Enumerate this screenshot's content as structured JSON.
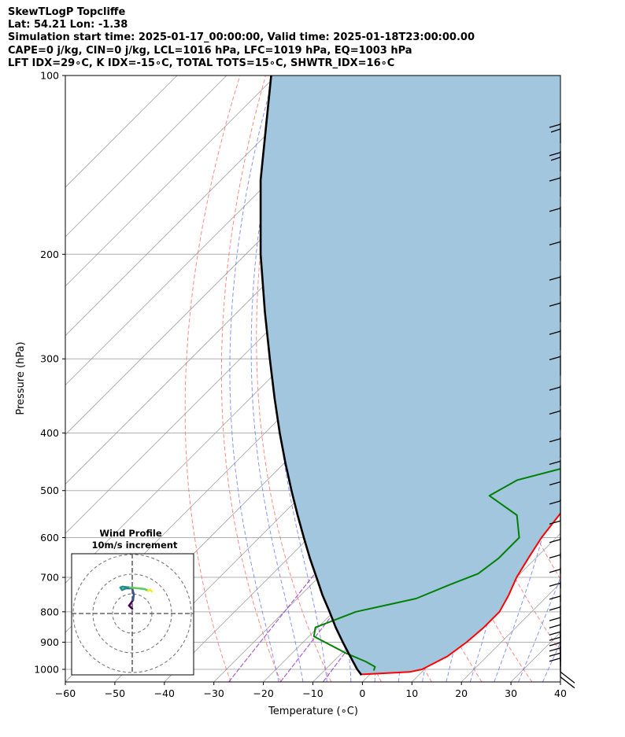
{
  "header": {
    "line1": "SkewTLogP Topcliffe",
    "line2": "Lat: 54.21   Lon: -1.38",
    "line3": "Simulation start time: 2025-01-17_00:00:00, Valid time: 2025-01-18T23:00:00.00",
    "line4": "CAPE=0 j/kg, CIN=0 j/kg, LCL=1016 hPa, LFC=1019 hPa, EQ=1003 hPa",
    "line5": "LFT IDX=29∘C, K IDX=-15∘C, TOTAL TOTS=15∘C, SHWTR_IDX=16∘C"
  },
  "chart_data": {
    "type": "line",
    "xlabel": "Temperature (∘C)",
    "ylabel": "Pressure (hPa)",
    "xlim": [
      -60,
      40
    ],
    "ylim": [
      1050,
      100
    ],
    "y_scale": "log",
    "x_ticks": [
      "−60",
      "−50",
      "−40",
      "−30",
      "−20",
      "−10",
      "0",
      "10",
      "20",
      "30",
      "40"
    ],
    "y_ticks": [
      "1000",
      "900",
      "800",
      "700",
      "600",
      "500",
      "400",
      "300",
      "200",
      "100"
    ],
    "skew": "temperature isotherms skewed 45°",
    "shading": "area between parcel profile and temperature shaded light blue",
    "colors": {
      "temperature": "#ff0000",
      "dewpoint": "#008000",
      "parcel": "#000000",
      "shade": "#a3c6df",
      "dry_adiabats": "#ff6060",
      "moist_adiabats": "#6070ff",
      "mixing_ratio": "#9933cc"
    },
    "series": [
      {
        "key": "temperature",
        "points": [
          [
            1020,
            -2.0
          ],
          [
            1010,
            7.5
          ],
          [
            1000,
            9.5
          ],
          [
            980,
            10.5
          ],
          [
            950,
            12.0
          ],
          [
            900,
            13.0
          ],
          [
            850,
            13.5
          ],
          [
            800,
            13.5
          ],
          [
            750,
            12.0
          ],
          [
            700,
            10.0
          ],
          [
            650,
            8.5
          ],
          [
            600,
            7.0
          ],
          [
            550,
            6.0
          ],
          [
            500,
            5.0
          ],
          [
            450,
            5.0
          ],
          [
            400,
            4.0
          ],
          [
            350,
            4.0
          ],
          [
            300,
            3.0
          ],
          [
            270,
            3.5
          ],
          [
            250,
            5.0
          ],
          [
            220,
            6.5
          ],
          [
            200,
            7.5
          ],
          [
            180,
            15.0
          ],
          [
            160,
            25.0
          ],
          [
            145,
            33.0
          ],
          [
            130,
            39.0
          ],
          [
            120,
            41.0
          ],
          [
            110,
            45.0
          ],
          [
            100,
            50.0
          ]
        ]
      },
      {
        "key": "dewpoint",
        "points": [
          [
            1005,
            0.0
          ],
          [
            990,
            -0.5
          ],
          [
            970,
            -3.5
          ],
          [
            940,
            -9.0
          ],
          [
            880,
            -19.0
          ],
          [
            850,
            -20.5
          ],
          [
            800,
            -15.5
          ],
          [
            760,
            -6.0
          ],
          [
            720,
            -2.0
          ],
          [
            690,
            1.5
          ],
          [
            650,
            2.5
          ],
          [
            600,
            2.5
          ],
          [
            550,
            -2.5
          ],
          [
            510,
            -12.0
          ],
          [
            480,
            -9.5
          ],
          [
            450,
            0.0
          ],
          [
            420,
            1.5
          ],
          [
            380,
            4.0
          ],
          [
            350,
            5.0
          ],
          [
            300,
            8.0
          ],
          [
            270,
            10.0
          ],
          [
            240,
            14.0
          ],
          [
            220,
            20.0
          ],
          [
            200,
            25.5
          ],
          [
            185,
            28.5
          ],
          [
            170,
            32.0
          ],
          [
            160,
            30.5
          ],
          [
            150,
            28.0
          ],
          [
            140,
            28.0
          ],
          [
            130,
            33.0
          ],
          [
            120,
            39.0
          ],
          [
            110,
            46.0
          ],
          [
            100,
            54.0
          ]
        ]
      },
      {
        "key": "parcel",
        "points": [
          [
            1022,
            -1.6
          ],
          [
            1000,
            -3.6
          ],
          [
            950,
            -7.7
          ],
          [
            900,
            -12.0
          ],
          [
            850,
            -16.4
          ],
          [
            800,
            -20.8
          ],
          [
            750,
            -25.6
          ],
          [
            700,
            -30.4
          ],
          [
            650,
            -35.6
          ],
          [
            600,
            -41.0
          ],
          [
            550,
            -46.8
          ],
          [
            500,
            -53.0
          ],
          [
            450,
            -59.7
          ],
          [
            400,
            -67.0
          ],
          [
            350,
            -75.0
          ],
          [
            300,
            -84.0
          ],
          [
            250,
            -94.5
          ],
          [
            200,
            -107.0
          ],
          [
            150,
            -122.0
          ],
          [
            100,
            -141.0
          ]
        ]
      }
    ],
    "wind_barbs_pressure_hpa": [
      1030,
      1010,
      990,
      970,
      950,
      930,
      905,
      880,
      845,
      810,
      770,
      730,
      690,
      650,
      605,
      560,
      520,
      480,
      440,
      395,
      360,
      320,
      290,
      260,
      235,
      205,
      180,
      160,
      145,
      130
    ],
    "inset": {
      "title": "Wind Profile",
      "subtitle": "10m/s increment",
      "rings": 3,
      "hodograph_uv": [
        [
          0.0,
          -1.4
        ],
        [
          -0.4,
          -1.0
        ],
        [
          0.1,
          -0.3
        ],
        [
          0.2,
          0.4
        ],
        [
          0.0,
          1.2
        ],
        [
          -0.8,
          1.2
        ],
        [
          -1.3,
          1.0
        ],
        [
          -1.5,
          1.3
        ],
        [
          -1.2,
          1.4
        ],
        [
          -0.3,
          1.3
        ],
        [
          0.8,
          1.2
        ],
        [
          1.6,
          1.1
        ],
        [
          2.0,
          0.9
        ],
        [
          2.3,
          1.0
        ],
        [
          2.5,
          0.8
        ]
      ]
    }
  }
}
